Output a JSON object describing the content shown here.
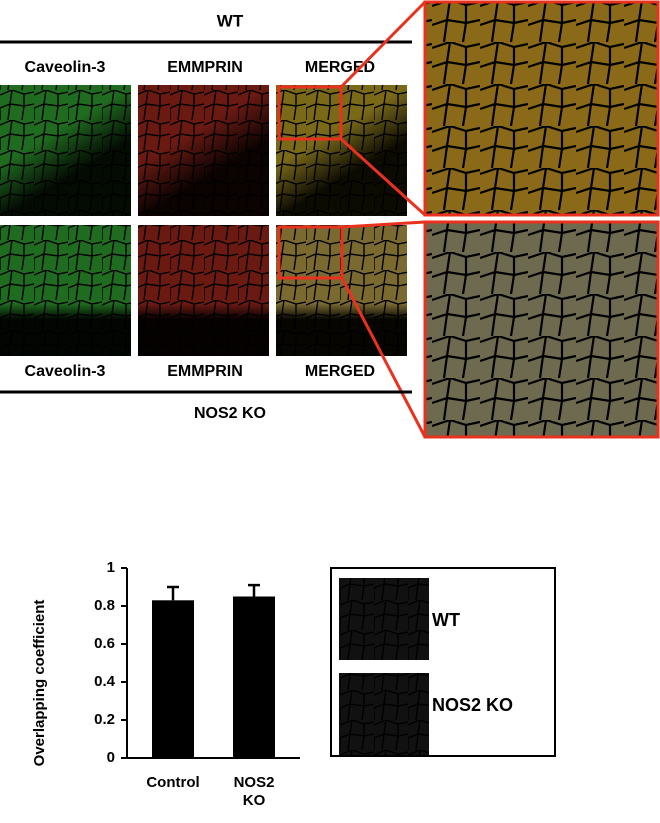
{
  "figure": {
    "wt_label": "WT",
    "top_columns": [
      "Caveolin-3",
      "EMMPRIN",
      "MERGED"
    ],
    "bottom_columns": [
      "Caveolin-3",
      "EMMPRIN",
      "MERGED"
    ],
    "ko_label": "NOS2 KO",
    "inset_labels": [
      "WT",
      "NOS2 KO"
    ]
  },
  "chart_data": {
    "type": "bar",
    "y_label": "Overlapping coefficient",
    "categories": [
      "Control",
      "NOS2 KO"
    ],
    "series": [
      {
        "values": [
          0.83,
          0.85
        ],
        "errors": [
          0.07,
          0.06
        ],
        "color": "#000000"
      }
    ],
    "ylim": [
      0,
      1
    ],
    "yticks": [
      0,
      0.2,
      0.4,
      0.6,
      0.8,
      1
    ]
  }
}
